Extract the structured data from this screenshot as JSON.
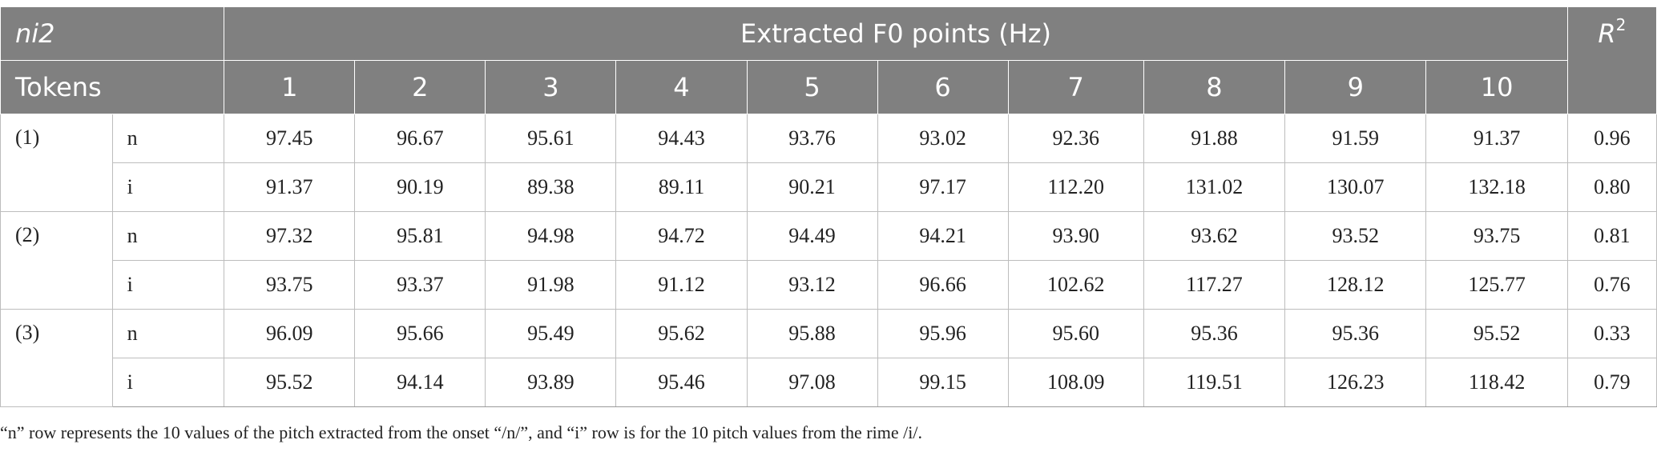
{
  "table": {
    "corner_label": "ni2",
    "group_header": "Extracted F0 points (Hz)",
    "r2_label": "R",
    "r2_superscript": "2",
    "tokens_label": "Tokens",
    "point_headers": [
      "1",
      "2",
      "3",
      "4",
      "5",
      "6",
      "7",
      "8",
      "9",
      "10"
    ],
    "tokens": [
      {
        "label": "(1)",
        "rows": [
          {
            "segment": "n",
            "values": [
              "97.45",
              "96.67",
              "95.61",
              "94.43",
              "93.76",
              "93.02",
              "92.36",
              "91.88",
              "91.59",
              "91.37"
            ],
            "r2": "0.96"
          },
          {
            "segment": "i",
            "values": [
              "91.37",
              "90.19",
              "89.38",
              "89.11",
              "90.21",
              "97.17",
              "112.20",
              "131.02",
              "130.07",
              "132.18"
            ],
            "r2": "0.80"
          }
        ]
      },
      {
        "label": "(2)",
        "rows": [
          {
            "segment": "n",
            "values": [
              "97.32",
              "95.81",
              "94.98",
              "94.72",
              "94.49",
              "94.21",
              "93.90",
              "93.62",
              "93.52",
              "93.75"
            ],
            "r2": "0.81"
          },
          {
            "segment": "i",
            "values": [
              "93.75",
              "93.37",
              "91.98",
              "91.12",
              "93.12",
              "96.66",
              "102.62",
              "117.27",
              "128.12",
              "125.77"
            ],
            "r2": "0.76"
          }
        ]
      },
      {
        "label": "(3)",
        "rows": [
          {
            "segment": "n",
            "values": [
              "96.09",
              "95.66",
              "95.49",
              "95.62",
              "95.88",
              "95.96",
              "95.60",
              "95.36",
              "95.36",
              "95.52"
            ],
            "r2": "0.33"
          },
          {
            "segment": "i",
            "values": [
              "95.52",
              "94.14",
              "93.89",
              "95.46",
              "97.08",
              "99.15",
              "108.09",
              "119.51",
              "126.23",
              "118.42"
            ],
            "r2": "0.79"
          }
        ]
      }
    ]
  },
  "footnote": "“n” row represents the 10 values of the pitch extracted from the onset “/n/”, and “i” row is for the 10 pitch values from the rime /i/.",
  "colors": {
    "header_background": "#808080",
    "header_text": "#ffffff",
    "grid_line": "#bdbdbd"
  }
}
